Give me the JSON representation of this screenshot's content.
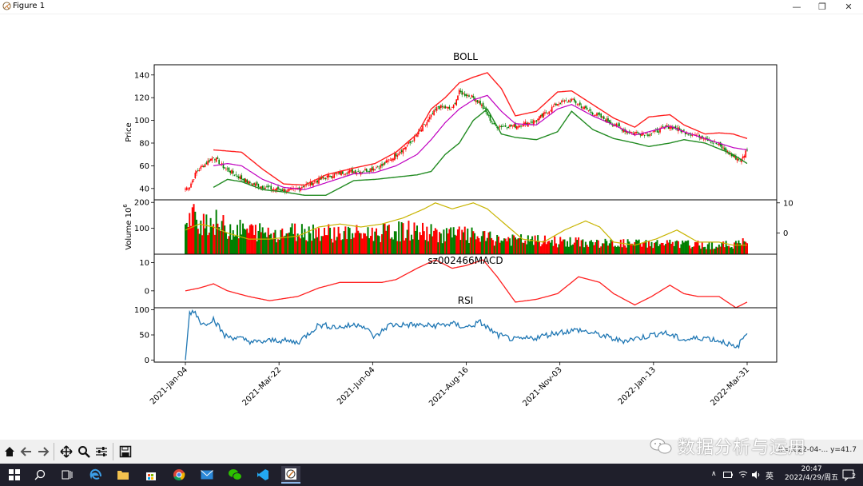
{
  "window": {
    "title": "Figure 1",
    "minimize": "—",
    "maximize": "❐",
    "close": "✕"
  },
  "colors": {
    "up": "#ff0000",
    "down": "#008000",
    "upper_band": "#ff2020",
    "mid_band": "#c000c0",
    "lower_band": "#228b22",
    "macd": "#ff2020",
    "dif_overlay": "#c8b400",
    "rsi": "#1f77b4"
  },
  "chart_data": [
    {
      "type": "candlestick",
      "title": "BOLL",
      "ylabel": "Price",
      "ylim": [
        30,
        149
      ],
      "yticks": [
        40,
        60,
        80,
        100,
        120,
        140
      ],
      "x_dates": [
        "2021-Jan-04",
        "2021-Mar-22",
        "2021-Jun-04",
        "2021-Aug-16",
        "2021-Nov-03",
        "2022-Jan-13",
        "2022-Mar-31"
      ],
      "close_keypoints": [
        [
          0,
          40
        ],
        [
          3,
          42
        ],
        [
          8,
          55
        ],
        [
          20,
          68
        ],
        [
          28,
          58
        ],
        [
          45,
          45
        ],
        [
          60,
          40
        ],
        [
          75,
          38
        ],
        [
          90,
          45
        ],
        [
          105,
          52
        ],
        [
          115,
          55
        ],
        [
          125,
          55
        ],
        [
          140,
          60
        ],
        [
          150,
          70
        ],
        [
          160,
          80
        ],
        [
          170,
          95
        ],
        [
          180,
          112
        ],
        [
          190,
          110
        ],
        [
          195,
          125
        ],
        [
          205,
          120
        ],
        [
          210,
          115
        ],
        [
          220,
          95
        ],
        [
          235,
          95
        ],
        [
          250,
          100
        ],
        [
          265,
          115
        ],
        [
          275,
          118
        ],
        [
          285,
          110
        ],
        [
          300,
          100
        ],
        [
          315,
          90
        ],
        [
          330,
          88
        ],
        [
          345,
          95
        ],
        [
          355,
          90
        ],
        [
          370,
          85
        ],
        [
          380,
          78
        ],
        [
          390,
          68
        ],
        [
          396,
          65
        ],
        [
          400,
          75
        ]
      ],
      "upper_keypoints": [
        [
          20,
          74
        ],
        [
          30,
          73
        ],
        [
          40,
          72
        ],
        [
          55,
          57
        ],
        [
          70,
          44
        ],
        [
          85,
          43
        ],
        [
          100,
          52
        ],
        [
          120,
          58
        ],
        [
          135,
          62
        ],
        [
          150,
          72
        ],
        [
          165,
          88
        ],
        [
          175,
          110
        ],
        [
          185,
          120
        ],
        [
          195,
          133
        ],
        [
          205,
          138
        ],
        [
          215,
          142
        ],
        [
          225,
          128
        ],
        [
          235,
          104
        ],
        [
          250,
          108
        ],
        [
          265,
          125
        ],
        [
          275,
          126
        ],
        [
          290,
          114
        ],
        [
          305,
          102
        ],
        [
          320,
          94
        ],
        [
          330,
          103
        ],
        [
          345,
          105
        ],
        [
          355,
          96
        ],
        [
          370,
          88
        ],
        [
          380,
          89
        ],
        [
          390,
          88
        ],
        [
          400,
          84
        ]
      ],
      "mid_keypoints": [
        [
          20,
          60
        ],
        [
          30,
          62
        ],
        [
          40,
          60
        ],
        [
          55,
          48
        ],
        [
          70,
          41
        ],
        [
          85,
          39
        ],
        [
          100,
          45
        ],
        [
          120,
          53
        ],
        [
          135,
          54
        ],
        [
          150,
          60
        ],
        [
          165,
          70
        ],
        [
          175,
          83
        ],
        [
          185,
          98
        ],
        [
          195,
          110
        ],
        [
          205,
          118
        ],
        [
          215,
          122
        ],
        [
          225,
          108
        ],
        [
          235,
          97
        ],
        [
          250,
          96
        ],
        [
          265,
          110
        ],
        [
          275,
          114
        ],
        [
          290,
          104
        ],
        [
          305,
          96
        ],
        [
          320,
          87
        ],
        [
          330,
          90
        ],
        [
          345,
          95
        ],
        [
          355,
          90
        ],
        [
          370,
          84
        ],
        [
          380,
          80
        ],
        [
          390,
          76
        ],
        [
          400,
          74
        ]
      ],
      "lower_keypoints": [
        [
          20,
          41
        ],
        [
          30,
          48
        ],
        [
          40,
          46
        ],
        [
          55,
          39
        ],
        [
          70,
          37
        ],
        [
          85,
          34
        ],
        [
          100,
          34
        ],
        [
          120,
          47
        ],
        [
          135,
          48
        ],
        [
          150,
          50
        ],
        [
          165,
          52
        ],
        [
          175,
          55
        ],
        [
          185,
          70
        ],
        [
          195,
          80
        ],
        [
          205,
          100
        ],
        [
          215,
          110
        ],
        [
          225,
          88
        ],
        [
          235,
          85
        ],
        [
          250,
          83
        ],
        [
          265,
          90
        ],
        [
          275,
          108
        ],
        [
          290,
          92
        ],
        [
          305,
          84
        ],
        [
          320,
          80
        ],
        [
          330,
          77
        ],
        [
          345,
          80
        ],
        [
          355,
          83
        ],
        [
          370,
          80
        ],
        [
          380,
          75
        ],
        [
          390,
          70
        ],
        [
          400,
          62
        ]
      ]
    },
    {
      "type": "bar",
      "ylabel": "Volume  10^6",
      "ylim": [
        0,
        210
      ],
      "yticks": [
        100,
        200
      ],
      "right_ylim": [
        -7,
        11
      ],
      "right_yticks": [
        0,
        10
      ],
      "volume_keypoints": [
        [
          0,
          120
        ],
        [
          6,
          170
        ],
        [
          12,
          160
        ],
        [
          20,
          150
        ],
        [
          30,
          120
        ],
        [
          45,
          110
        ],
        [
          60,
          100
        ],
        [
          75,
          105
        ],
        [
          90,
          110
        ],
        [
          105,
          100
        ],
        [
          120,
          95
        ],
        [
          140,
          100
        ],
        [
          160,
          110
        ],
        [
          180,
          95
        ],
        [
          200,
          90
        ],
        [
          220,
          70
        ],
        [
          240,
          65
        ],
        [
          260,
          60
        ],
        [
          280,
          55
        ],
        [
          300,
          50
        ],
        [
          320,
          50
        ],
        [
          340,
          50
        ],
        [
          360,
          45
        ],
        [
          380,
          40
        ],
        [
          400,
          55
        ]
      ],
      "dif_keypoints": [
        [
          0,
          1
        ],
        [
          10,
          3
        ],
        [
          20,
          2
        ],
        [
          30,
          0
        ],
        [
          45,
          -2
        ],
        [
          60,
          -2
        ],
        [
          80,
          -1
        ],
        [
          95,
          2
        ],
        [
          110,
          3
        ],
        [
          125,
          2
        ],
        [
          140,
          3
        ],
        [
          155,
          5
        ],
        [
          170,
          8
        ],
        [
          178,
          10
        ],
        [
          190,
          8
        ],
        [
          205,
          10
        ],
        [
          215,
          8
        ],
        [
          225,
          4
        ],
        [
          240,
          -2
        ],
        [
          255,
          -3
        ],
        [
          270,
          1
        ],
        [
          285,
          4
        ],
        [
          295,
          2
        ],
        [
          305,
          -3
        ],
        [
          320,
          -4
        ],
        [
          335,
          -2
        ],
        [
          350,
          1
        ],
        [
          365,
          -3
        ],
        [
          380,
          -3
        ],
        [
          390,
          -4
        ],
        [
          400,
          -4
        ]
      ]
    },
    {
      "type": "line",
      "title": "sz002466MACD",
      "ylim": [
        -6,
        13
      ],
      "yticks": [
        0,
        10
      ],
      "macd_keypoints": [
        [
          0,
          0
        ],
        [
          10,
          1
        ],
        [
          20,
          2.5
        ],
        [
          30,
          0
        ],
        [
          45,
          -2
        ],
        [
          60,
          -3.5
        ],
        [
          80,
          -2
        ],
        [
          95,
          1
        ],
        [
          110,
          3
        ],
        [
          125,
          3
        ],
        [
          140,
          3
        ],
        [
          150,
          4
        ],
        [
          165,
          8
        ],
        [
          178,
          11
        ],
        [
          190,
          8
        ],
        [
          200,
          9
        ],
        [
          212,
          11
        ],
        [
          222,
          5
        ],
        [
          235,
          -4
        ],
        [
          250,
          -3
        ],
        [
          265,
          -1
        ],
        [
          280,
          5
        ],
        [
          295,
          3
        ],
        [
          305,
          -1
        ],
        [
          320,
          -5
        ],
        [
          332,
          -2
        ],
        [
          345,
          2
        ],
        [
          355,
          -1
        ],
        [
          365,
          -2
        ],
        [
          380,
          -2
        ],
        [
          392,
          -6
        ],
        [
          400,
          -4
        ]
      ]
    },
    {
      "type": "line",
      "title": "RSI",
      "ylim": [
        -4,
        104
      ],
      "yticks": [
        0,
        50,
        100
      ],
      "rsi_keypoints": [
        [
          0,
          0
        ],
        [
          3,
          95
        ],
        [
          7,
          96
        ],
        [
          12,
          70
        ],
        [
          20,
          82
        ],
        [
          28,
          48
        ],
        [
          35,
          45
        ],
        [
          50,
          35
        ],
        [
          65,
          40
        ],
        [
          80,
          35
        ],
        [
          95,
          70
        ],
        [
          110,
          65
        ],
        [
          125,
          72
        ],
        [
          135,
          45
        ],
        [
          145,
          70
        ],
        [
          160,
          70
        ],
        [
          175,
          68
        ],
        [
          190,
          72
        ],
        [
          200,
          65
        ],
        [
          210,
          75
        ],
        [
          222,
          50
        ],
        [
          235,
          40
        ],
        [
          250,
          45
        ],
        [
          265,
          55
        ],
        [
          280,
          60
        ],
        [
          295,
          50
        ],
        [
          310,
          38
        ],
        [
          325,
          45
        ],
        [
          340,
          55
        ],
        [
          355,
          40
        ],
        [
          370,
          45
        ],
        [
          385,
          35
        ],
        [
          392,
          22
        ],
        [
          400,
          55
        ]
      ]
    }
  ],
  "x_tick_labels": [
    "2021-Jan-04",
    "2021-Mar-22",
    "2021-Jun-04",
    "2021-Aug-16",
    "2021-Nov-03",
    "2022-Jan-13",
    "2022-Mar-31"
  ],
  "toolbar": {
    "coords": "x=2022-04-... y=41.7"
  },
  "watermark": {
    "text": "数据分析与运用"
  },
  "taskbar": {
    "ime": "英",
    "time": "20:47",
    "date": "2022/4/29/周五",
    "notifications": "2"
  }
}
